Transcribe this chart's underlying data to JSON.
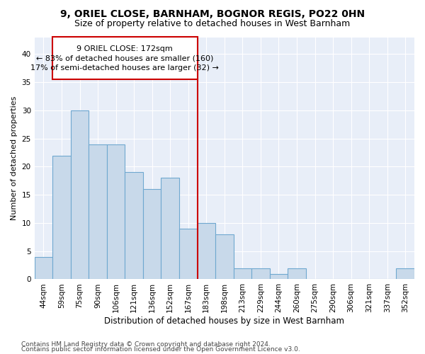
{
  "title1": "9, ORIEL CLOSE, BARNHAM, BOGNOR REGIS, PO22 0HN",
  "title2": "Size of property relative to detached houses in West Barnham",
  "xlabel": "Distribution of detached houses by size in West Barnham",
  "ylabel": "Number of detached properties",
  "categories": [
    "44sqm",
    "59sqm",
    "75sqm",
    "90sqm",
    "106sqm",
    "121sqm",
    "136sqm",
    "152sqm",
    "167sqm",
    "183sqm",
    "198sqm",
    "213sqm",
    "229sqm",
    "244sqm",
    "260sqm",
    "275sqm",
    "290sqm",
    "306sqm",
    "321sqm",
    "337sqm",
    "352sqm"
  ],
  "values": [
    4,
    22,
    30,
    24,
    24,
    19,
    16,
    18,
    9,
    10,
    8,
    2,
    2,
    1,
    2,
    0,
    0,
    0,
    0,
    0,
    2
  ],
  "bar_color": "#c8d9ea",
  "bar_edgecolor": "#6fa8d0",
  "ref_line_color": "#cc0000",
  "annotation_line1": "9 ORIEL CLOSE: 172sqm",
  "annotation_line2": "← 83% of detached houses are smaller (160)",
  "annotation_line3": "17% of semi-detached houses are larger (32) →",
  "annotation_box_color": "#cc0000",
  "ylim": [
    0,
    43
  ],
  "yticks": [
    0,
    5,
    10,
    15,
    20,
    25,
    30,
    35,
    40
  ],
  "plot_bg_color": "#e8eef8",
  "grid_color": "#ffffff",
  "footer_line1": "Contains HM Land Registry data © Crown copyright and database right 2024.",
  "footer_line2": "Contains public sector information licensed under the Open Government Licence v3.0.",
  "title1_fontsize": 10,
  "title2_fontsize": 9,
  "xlabel_fontsize": 8.5,
  "ylabel_fontsize": 8,
  "tick_fontsize": 7.5,
  "annotation_fontsize": 8,
  "footer_fontsize": 6.5
}
